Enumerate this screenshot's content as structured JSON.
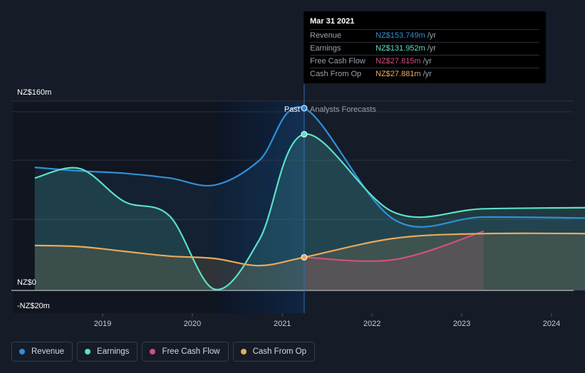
{
  "chart_data": {
    "type": "area",
    "y_label_top": "NZ$160m",
    "y_label_zero": "NZ$0",
    "y_label_bottom": "-NZ$20m",
    "ylim": [
      -20,
      160
    ],
    "x_ticks": [
      "2019",
      "2020",
      "2021",
      "2022",
      "2023",
      "2024"
    ],
    "x_range": [
      "2018-04",
      "2024-05"
    ],
    "past_label": "Past",
    "forecast_label": "Analysts Forecasts",
    "divider_date": "2021-03-31",
    "series": [
      {
        "name": "Revenue",
        "color": "#2f8fd8",
        "points": [
          [
            "2018-03-31",
            104
          ],
          [
            "2018-09-30",
            101
          ],
          [
            "2019-03-31",
            99
          ],
          [
            "2019-09-30",
            95
          ],
          [
            "2020-03-31",
            89
          ],
          [
            "2020-09-30",
            110
          ],
          [
            "2021-03-31",
            154
          ],
          [
            "2022-03-31",
            60
          ],
          [
            "2023-03-31",
            62
          ],
          [
            "2024-06-30",
            61
          ]
        ]
      },
      {
        "name": "Earnings",
        "color": "#5be0c8",
        "points": [
          [
            "2018-03-31",
            95
          ],
          [
            "2018-09-30",
            103
          ],
          [
            "2019-03-31",
            75
          ],
          [
            "2019-09-30",
            63
          ],
          [
            "2020-03-31",
            1
          ],
          [
            "2020-09-30",
            43
          ],
          [
            "2021-03-31",
            132
          ],
          [
            "2022-03-31",
            66
          ],
          [
            "2023-03-31",
            69
          ],
          [
            "2024-06-30",
            70
          ]
        ]
      },
      {
        "name": "Free Cash Flow",
        "color": "#d24f7f",
        "points": [
          [
            "2021-03-31",
            28
          ],
          [
            "2022-03-31",
            26
          ],
          [
            "2023-03-31",
            50
          ]
        ]
      },
      {
        "name": "Cash From Op",
        "color": "#e8a95b",
        "points": [
          [
            "2018-03-31",
            38
          ],
          [
            "2018-09-30",
            37
          ],
          [
            "2019-03-31",
            33
          ],
          [
            "2019-09-30",
            29
          ],
          [
            "2020-03-31",
            27
          ],
          [
            "2020-09-30",
            21
          ],
          [
            "2021-03-31",
            28
          ],
          [
            "2022-03-31",
            44
          ],
          [
            "2023-03-31",
            48
          ],
          [
            "2024-06-30",
            48
          ]
        ]
      }
    ]
  },
  "tooltip": {
    "date": "Mar 31 2021",
    "rows": [
      {
        "label": "Revenue",
        "value": "NZ$153.749m",
        "unit": "/yr",
        "color": "#2f8fd8"
      },
      {
        "label": "Earnings",
        "value": "NZ$131.952m",
        "unit": "/yr",
        "color": "#5be0c8"
      },
      {
        "label": "Free Cash Flow",
        "value": "NZ$27.815m",
        "unit": "/yr",
        "color": "#d24f7f"
      },
      {
        "label": "Cash From Op",
        "value": "NZ$27.881m",
        "unit": "/yr",
        "color": "#e8a95b"
      }
    ]
  },
  "legend": [
    {
      "label": "Revenue",
      "color": "#2f8fd8"
    },
    {
      "label": "Earnings",
      "color": "#5be0c8"
    },
    {
      "label": "Free Cash Flow",
      "color": "#d24f7f"
    },
    {
      "label": "Cash From Op",
      "color": "#e8a95b"
    }
  ]
}
